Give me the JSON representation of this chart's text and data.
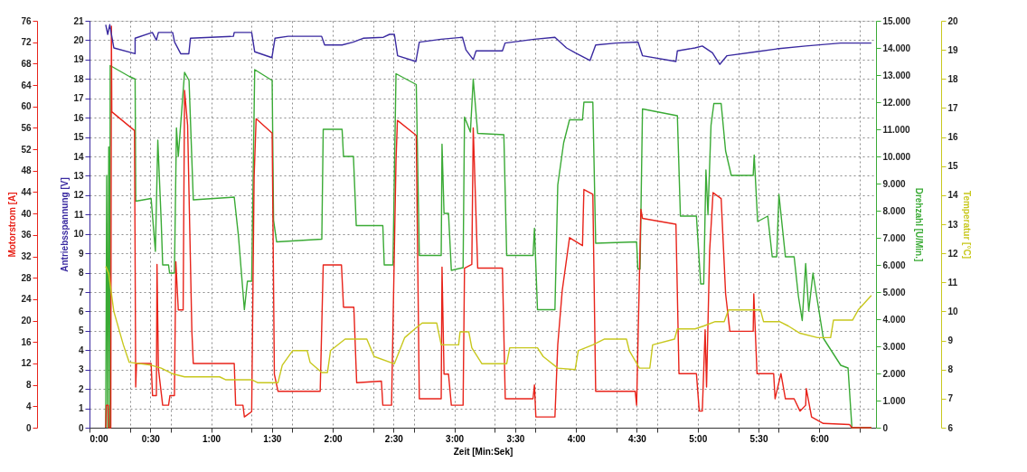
{
  "chart_data": [
    {
      "type": "line",
      "xlabel": "Zeit [Min:Sek]",
      "ylabel": "Antriebsspannung [V]",
      "y2label": "Drehzahl [U/Min.]",
      "y3label": "Motorstrom [A]",
      "xlim": [
        0,
        388
      ],
      "xticks": [
        {
          "value": 0,
          "label": "0:00"
        },
        {
          "value": 20,
          "label": null
        },
        {
          "value": 30,
          "label": "0:30"
        },
        {
          "value": 40,
          "label": null
        },
        {
          "value": 60,
          "label": "1:00"
        },
        {
          "value": 80,
          "label": null
        },
        {
          "value": 90,
          "label": "1:30"
        },
        {
          "value": 100,
          "label": null
        },
        {
          "value": 120,
          "label": "2:00"
        },
        {
          "value": 140,
          "label": null
        },
        {
          "value": 150,
          "label": "2:30"
        },
        {
          "value": 160,
          "label": null
        },
        {
          "value": 180,
          "label": "3:00"
        },
        {
          "value": 200,
          "label": null
        },
        {
          "value": 210,
          "label": "3:30"
        },
        {
          "value": 220,
          "label": null
        },
        {
          "value": 240,
          "label": "4:00"
        },
        {
          "value": 260,
          "label": null
        },
        {
          "value": 270,
          "label": "4:30"
        },
        {
          "value": 280,
          "label": null
        },
        {
          "value": 300,
          "label": "5:00"
        },
        {
          "value": 320,
          "label": null
        },
        {
          "value": 330,
          "label": "5:30"
        },
        {
          "value": 340,
          "label": null
        },
        {
          "value": 360,
          "label": "6:00"
        },
        {
          "value": 380,
          "label": null
        }
      ],
      "ylim": [
        0,
        21
      ],
      "yticks": [
        0,
        1,
        2,
        3,
        4,
        5,
        6,
        7,
        8,
        9,
        10,
        11,
        12,
        13,
        14,
        15,
        16,
        17,
        18,
        19,
        20,
        21
      ],
      "y2lim": [
        0,
        15000
      ],
      "y2ticks": [
        0,
        {
          "value": 1000,
          "label": "1.000"
        },
        {
          "value": 2000,
          "label": "2.000"
        },
        {
          "value": 3000,
          "label": "3.000"
        },
        {
          "value": 4000,
          "label": "4.000"
        },
        {
          "value": 5000,
          "label": "5.000"
        },
        {
          "value": 6000,
          "label": "6.000"
        },
        {
          "value": 7000,
          "label": "7.000"
        },
        {
          "value": 8000,
          "label": "8.000"
        },
        {
          "value": 9000,
          "label": "9.000"
        },
        {
          "value": 10000,
          "label": "10.000"
        },
        {
          "value": 11000,
          "label": "11.000"
        },
        {
          "value": 12000,
          "label": "12.000"
        },
        {
          "value": 13000,
          "label": "13.000"
        },
        {
          "value": 14000,
          "label": "14.000"
        },
        {
          "value": 15000,
          "label": "15.000"
        }
      ],
      "y3lim": [
        0,
        76
      ],
      "y3ticks": [
        0,
        4,
        8,
        12,
        16,
        20,
        24,
        28,
        32,
        36,
        40,
        44,
        48,
        52,
        56,
        60,
        64,
        68,
        72,
        76
      ],
      "grid": true,
      "series": [
        {
          "axis": "y2",
          "color": "#3aaa35",
          "x": [
            8,
            8.5,
            9,
            9.5,
            10,
            10.2,
            19.6,
            22.5,
            22.8,
            30.4,
            32.5,
            33.7,
            35.4,
            36.1,
            39,
            39.5,
            41.9,
            42.9,
            43.8,
            46.9,
            49.1,
            51.2,
            71.4,
            73.5,
            76.4,
            77.9,
            80,
            81.5,
            90.1,
            90.8,
            92.3,
            114.6,
            115.3,
            124.6,
            125.3,
            130.2,
            131.6,
            144.7,
            145.4,
            149.7,
            151.2,
            161.2,
            162.7,
            173.5,
            173.9,
            174.9,
            177.1,
            178.5,
            184.3,
            185,
            187.9,
            189.3,
            191.5,
            204.4,
            205.8,
            218.8,
            219.5,
            221,
            229.6,
            231,
            233.9,
            236.8,
            243.2,
            243.9,
            248.3,
            249.7,
            269.9,
            270.5,
            271.6,
            272.8,
            290,
            291.5,
            299.4,
            301.5,
            303,
            304.1,
            305.1,
            306.6,
            308,
            311.6,
            313.8,
            316.6,
            327.4,
            327.9,
            329.6,
            334.6,
            336.8,
            339,
            340.1,
            343.3,
            347.6,
            349.7,
            351.6,
            353.3,
            354.8,
            356.9,
            362,
            370.6,
            374.2,
            376.1,
            385.7
          ],
          "values": [
            0,
            9300,
            0,
            10350,
            0,
            13350,
            12950,
            12850,
            8350,
            8450,
            6500,
            10600,
            7550,
            6000,
            6000,
            5700,
            5700,
            11050,
            10000,
            13100,
            12800,
            8400,
            8500,
            7050,
            4350,
            5400,
            5400,
            13200,
            12800,
            7650,
            6850,
            6950,
            11000,
            11000,
            10000,
            10000,
            7450,
            7450,
            6000,
            6000,
            13050,
            12650,
            6350,
            6350,
            10450,
            7900,
            7900,
            5800,
            5900,
            11450,
            10900,
            12850,
            10850,
            10800,
            6350,
            6350,
            7350,
            4350,
            4350,
            8950,
            10500,
            11350,
            11350,
            12000,
            12000,
            6800,
            6850,
            5850,
            5850,
            11750,
            11500,
            7800,
            7800,
            5300,
            5300,
            9500,
            7850,
            11150,
            11950,
            11950,
            10200,
            9300,
            9300,
            10050,
            7600,
            7800,
            6300,
            6300,
            8600,
            6300,
            6300,
            4850,
            3950,
            6050,
            4300,
            5700,
            3300,
            2300,
            2200,
            0,
            0
          ]
        },
        {
          "axis": "y3",
          "color": "#e8231a",
          "x": [
            8,
            8.3,
            9.3,
            9.5,
            10.5,
            10.8,
            11,
            22.2,
            22.8,
            23.2,
            30.4,
            31.1,
            33,
            33.3,
            34,
            36.1,
            39,
            39.7,
            41.9,
            42.6,
            43.8,
            46.2,
            46.9,
            48.4,
            50.5,
            51.2,
            71.4,
            72.1,
            75.7,
            76.4,
            80,
            81.2,
            82.2,
            90.1,
            91.2,
            93,
            113.8,
            115.3,
            124.3,
            125.3,
            130.4,
            131.8,
            144,
            144.7,
            149,
            151.2,
            151.9,
            161.2,
            162.7,
            173.5,
            173.9,
            174.9,
            177.1,
            178.5,
            184.3,
            185,
            188.6,
            189.3,
            191.5,
            203.7,
            205.1,
            218.8,
            219.5,
            220.2,
            229.6,
            231,
            233.2,
            236.8,
            243.2,
            243.9,
            248.3,
            249.7,
            269.2,
            269.9,
            272,
            272.8,
            289.3,
            290.8,
            299.4,
            300.8,
            302.3,
            303.7,
            304.4,
            305.9,
            307.6,
            311.6,
            313.8,
            315.9,
            327.4,
            327.7,
            329.3,
            337.5,
            338.2,
            341.1,
            343.3,
            347.6,
            350.5,
            353.3,
            353.6,
            356.2,
            362,
            374.9,
            376.1,
            385.7
          ],
          "values": [
            0,
            4.2,
            4.2,
            0,
            0,
            75,
            59,
            55.5,
            7.6,
            12,
            12,
            6,
            6,
            30.5,
            11,
            4.2,
            4.2,
            6,
            6,
            31,
            22,
            22,
            63,
            56.5,
            18,
            12,
            12,
            4.2,
            4.2,
            2,
            3,
            46.7,
            57.7,
            55,
            10,
            6.8,
            6.8,
            30.4,
            30.4,
            22.5,
            22.5,
            8.4,
            8.7,
            4.2,
            4.2,
            49.8,
            57.4,
            54.6,
            5.4,
            5.4,
            30,
            10,
            10,
            4.2,
            4.2,
            29.8,
            30.5,
            56,
            29.8,
            29.8,
            5.4,
            5.4,
            8,
            2,
            2,
            15.5,
            25.6,
            35.5,
            34,
            44.5,
            43.6,
            6.8,
            6.8,
            4.2,
            40.8,
            39.1,
            38,
            10.1,
            10.1,
            3.1,
            3.1,
            18.3,
            7.6,
            32.9,
            43.9,
            42.8,
            25,
            18,
            18,
            25,
            10.1,
            10.1,
            5.4,
            10.1,
            5.4,
            5.4,
            3.1,
            4.2,
            7.3,
            2,
            0.8,
            0.6,
            0,
            0
          ]
        },
        {
          "color": "#3a2aa0",
          "x": [
            8,
            9,
            10,
            12,
            22.5,
            22.5,
            31,
            33,
            34,
            41,
            42,
            45,
            49,
            49.8,
            71,
            71.4,
            80,
            81.5,
            90,
            91.5,
            98,
            114.5,
            116,
            124.6,
            130,
            135,
            145,
            148,
            150.4,
            152,
            161,
            162.7,
            173.5,
            184,
            185.7,
            189.3,
            190.7,
            203.7,
            205,
            219.5,
            229.6,
            235.3,
            239.6,
            246.9,
            249.7,
            259.8,
            270.6,
            272.8,
            289.3,
            290,
            298.7,
            302.3,
            307.3,
            310.9,
            314.5,
            328.9,
            339,
            353.3,
            370.6,
            385.7
          ],
          "values": [
            20.8,
            20.3,
            20.8,
            19.6,
            19.3,
            20.1,
            20.4,
            20,
            20.4,
            20.4,
            19.9,
            19.3,
            19.3,
            20.1,
            20.2,
            20.4,
            20.4,
            19.4,
            19.1,
            20.1,
            20.2,
            20.2,
            19.75,
            19.75,
            19.9,
            20.1,
            20.15,
            20.3,
            20.3,
            19.2,
            18.9,
            19.9,
            20.05,
            20.15,
            19.5,
            19,
            19.45,
            19.45,
            19.85,
            20.05,
            20.15,
            19.6,
            19.35,
            18.95,
            19.75,
            19.85,
            19.9,
            19.2,
            18.9,
            19.45,
            19.6,
            19.7,
            19.35,
            18.75,
            19.2,
            19.4,
            19.55,
            19.7,
            19.85,
            19.85
          ]
        }
      ]
    },
    {
      "type": "line",
      "ylabel": "Temperatur [°C]",
      "xlim": [
        0,
        388
      ],
      "ylim": [
        6,
        20
      ],
      "yticks": [
        6,
        7,
        8,
        9,
        10,
        11,
        12,
        13,
        14,
        15,
        16,
        17,
        18,
        19,
        20
      ],
      "tick_labels": "y",
      "series": [
        {
          "color": "#c8c81e",
          "x": [
            8,
            9.5,
            12,
            16.7,
            19.6,
            30.4,
            35.4,
            41.2,
            46.9,
            64.2,
            67.1,
            80,
            82.9,
            93,
            95.1,
            100.2,
            107.4,
            108.8,
            114.6,
            117.4,
            118.9,
            126.1,
            134.7,
            136.8,
            140.4,
            150.4,
            155.5,
            160.5,
            164.1,
            171.3,
            173.5,
            182.1,
            182.8,
            187.1,
            188.6,
            193.6,
            205.8,
            207.3,
            221,
            223.8,
            231,
            239.6,
            241.1,
            248.3,
            254.1,
            259.8,
            264.9,
            266.3,
            271.3,
            276.4,
            277.8,
            288.6,
            290,
            298.7,
            303,
            308.7,
            313.1,
            315.2,
            331,
            332.5,
            340.4,
            344.7,
            350.5,
            359.1,
            365.6,
            367,
            376.4,
            379.2,
            385.7
          ],
          "values": [
            11.55,
            11.3,
            10,
            8.85,
            8.25,
            8.15,
            8.05,
            7.85,
            7.75,
            7.75,
            7.65,
            7.65,
            7.55,
            7.55,
            8.15,
            8.65,
            8.65,
            8.25,
            7.9,
            7.9,
            8.65,
            9.05,
            9.05,
            9.05,
            8.45,
            8.2,
            9.1,
            9.4,
            9.6,
            9.6,
            8.85,
            8.85,
            9.3,
            9.3,
            8.75,
            8.2,
            8.2,
            8.75,
            8.75,
            8.45,
            8.05,
            8,
            8.65,
            8.85,
            9.05,
            9.05,
            9.05,
            8.65,
            8.05,
            8.05,
            8.85,
            9.05,
            9.4,
            9.4,
            9.5,
            9.65,
            9.65,
            10.05,
            10.05,
            9.65,
            9.65,
            9.5,
            9.25,
            9.1,
            9.1,
            9.7,
            9.7,
            10.05,
            10.55
          ]
        }
      ]
    }
  ]
}
